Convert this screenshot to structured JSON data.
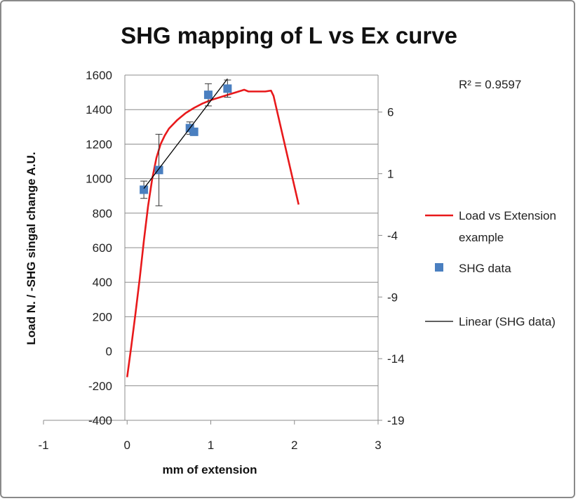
{
  "chart_data": {
    "type": "line",
    "title": "SHG mapping of L vs Ex curve",
    "xlabel": "mm of extension",
    "ylabel": "Load N. / -SHG singal change A.U.",
    "xlim": [
      -1,
      3
    ],
    "x_ticks": [
      "-1",
      "0",
      "1",
      "2",
      "3"
    ],
    "ylim": [
      -400,
      1600
    ],
    "y_ticks": [
      "-400",
      "-200",
      "0",
      "200",
      "400",
      "600",
      "800",
      "1000",
      "1200",
      "1400",
      "1600"
    ],
    "y2lim": [
      -19,
      9
    ],
    "y2_ticks": [
      "-19",
      "-14",
      "-9",
      "-4",
      "1",
      "6"
    ],
    "grid": "horizontal",
    "legend_position": "right",
    "annotation": "R² = 0.9597",
    "series": [
      {
        "name": "Load vs Extension example",
        "type": "line",
        "axis": "left",
        "color": "#e8191b",
        "x": [
          0.0,
          0.05,
          0.1,
          0.15,
          0.2,
          0.25,
          0.3,
          0.35,
          0.4,
          0.45,
          0.5,
          0.6,
          0.7,
          0.8,
          0.9,
          1.0,
          1.1,
          1.2,
          1.3,
          1.4,
          1.45,
          1.55,
          1.65,
          1.72,
          1.75,
          2.05
        ],
        "y": [
          -150,
          30,
          220,
          420,
          640,
          840,
          1000,
          1120,
          1200,
          1250,
          1290,
          1340,
          1380,
          1410,
          1435,
          1455,
          1470,
          1485,
          1500,
          1515,
          1505,
          1505,
          1505,
          1510,
          1480,
          850
        ]
      },
      {
        "name": "SHG data",
        "type": "scatter",
        "axis": "right",
        "color": "#4a7fc0",
        "x": [
          0.2,
          0.38,
          0.75,
          0.8,
          0.97,
          1.2
        ],
        "y": [
          -0.3,
          1.3,
          4.7,
          4.4,
          7.4,
          7.9
        ],
        "error": [
          0.7,
          2.9,
          0.5,
          0.3,
          0.9,
          0.7
        ]
      },
      {
        "name": "Linear (SHG data)",
        "type": "line",
        "axis": "right",
        "color": "#000000",
        "x": [
          0.2,
          1.2
        ],
        "y": [
          -0.2,
          8.7
        ]
      }
    ]
  }
}
